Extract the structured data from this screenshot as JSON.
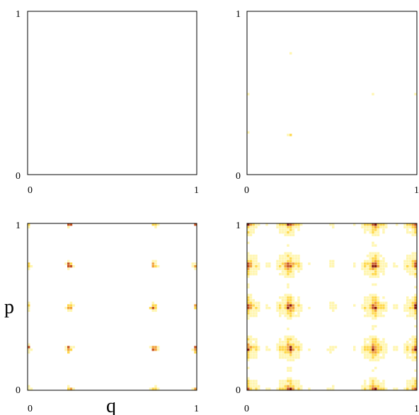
{
  "chart_data": [
    {
      "type": "heatmap",
      "panel": "top-left",
      "xlabel": "",
      "ylabel": "",
      "xlim": [
        0,
        1
      ],
      "ylim": [
        0,
        1
      ],
      "x_ticks": [
        "0",
        "1"
      ],
      "y_ticks": [
        "0",
        "1"
      ],
      "grid": false,
      "fill_level": 0.12,
      "palette": [
        "#ffffff",
        "#fff6b0",
        "#ffd84a",
        "#f2a23a",
        "#c8531f",
        "#8b1a0a"
      ],
      "frame_color": "#000000"
    },
    {
      "type": "heatmap",
      "panel": "top-right",
      "xlabel": "",
      "ylabel": "",
      "xlim": [
        0,
        1
      ],
      "ylim": [
        0,
        1
      ],
      "x_ticks": [
        "0",
        "1"
      ],
      "y_ticks": [
        "0",
        "1"
      ],
      "grid": false,
      "fill_level": 0.3,
      "palette": [
        "#ffffff",
        "#fff6b0",
        "#ffd84a",
        "#f2a23a",
        "#c8531f",
        "#8b1a0a"
      ],
      "frame_color": "#000000"
    },
    {
      "type": "heatmap",
      "panel": "bottom-left",
      "xlabel": "q",
      "ylabel": "p",
      "xlim": [
        0,
        1
      ],
      "ylim": [
        0,
        1
      ],
      "x_ticks": [
        "0",
        "1"
      ],
      "y_ticks": [
        "0",
        "1"
      ],
      "grid": false,
      "fill_level": 0.62,
      "palette": [
        "#ffffff",
        "#fff6b0",
        "#ffd84a",
        "#f2a23a",
        "#c8531f",
        "#8b1a0a"
      ],
      "frame_color": "#000000"
    },
    {
      "type": "heatmap",
      "panel": "bottom-right",
      "xlabel": "",
      "ylabel": "",
      "xlim": [
        0,
        1
      ],
      "ylim": [
        0,
        1
      ],
      "x_ticks": [
        "0",
        "1"
      ],
      "y_ticks": [
        "0",
        "1"
      ],
      "grid": false,
      "fill_level": 0.9,
      "palette": [
        "#ffffff",
        "#fff6b0",
        "#ffd84a",
        "#f2a23a",
        "#c8531f",
        "#8b1a0a"
      ],
      "frame_color": "#000000"
    }
  ]
}
